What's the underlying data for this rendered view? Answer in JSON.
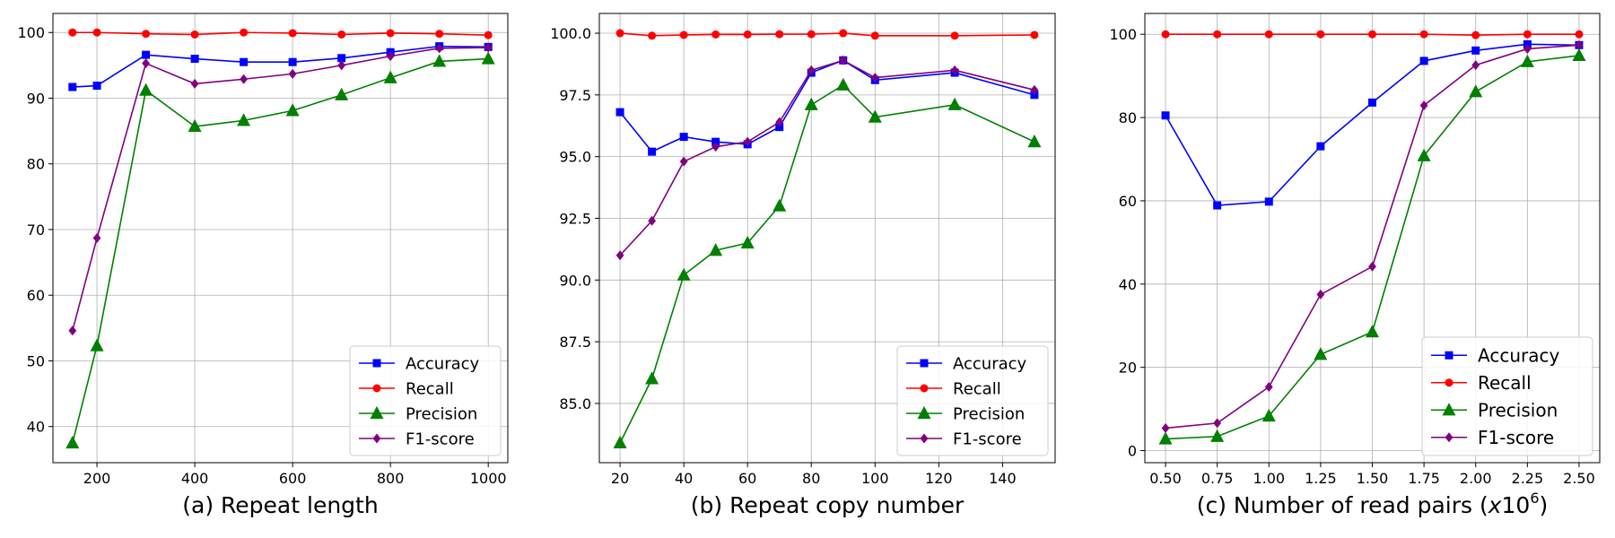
{
  "chart_data": [
    {
      "type": "line",
      "caption": "(a) Repeat length",
      "x": [
        150,
        200,
        300,
        400,
        500,
        600,
        700,
        800,
        900,
        1000
      ],
      "xlim": [
        110,
        1040
      ],
      "ylim": [
        34.5,
        102.9
      ],
      "xticks": [
        200,
        400,
        600,
        800,
        1000
      ],
      "yticks": [
        40,
        50,
        60,
        70,
        80,
        90,
        100
      ],
      "ytick_decimals": 0,
      "grid": true,
      "legend_position": "lower-right",
      "series": [
        {
          "name": "Accuracy",
          "color": "#0000ff",
          "marker": "square",
          "values": [
            91.7,
            91.9,
            96.6,
            96.0,
            95.5,
            95.5,
            96.1,
            97.0,
            97.9,
            97.8
          ]
        },
        {
          "name": "Recall",
          "color": "#ff0000",
          "marker": "circle",
          "values": [
            100.0,
            100.0,
            99.8,
            99.7,
            100.0,
            99.9,
            99.7,
            99.9,
            99.8,
            99.6
          ]
        },
        {
          "name": "Precision",
          "color": "#008000",
          "marker": "triangle",
          "values": [
            37.5,
            52.3,
            91.2,
            85.7,
            86.6,
            88.1,
            90.5,
            93.1,
            95.6,
            96.0
          ]
        },
        {
          "name": "F1-score",
          "color": "#800080",
          "marker": "diamond",
          "values": [
            54.6,
            68.7,
            95.3,
            92.2,
            92.9,
            93.7,
            95.0,
            96.4,
            97.6,
            97.7
          ]
        }
      ]
    },
    {
      "type": "line",
      "caption": "(b) Repeat copy number",
      "x": [
        20,
        30,
        40,
        50,
        60,
        70,
        80,
        90,
        100,
        125,
        150
      ],
      "xlim": [
        13.5,
        156.5
      ],
      "ylim": [
        82.6,
        100.8
      ],
      "xticks": [
        20,
        40,
        60,
        80,
        100,
        120,
        140
      ],
      "yticks": [
        85.0,
        87.5,
        90.0,
        92.5,
        95.0,
        97.5,
        100.0
      ],
      "ytick_decimals": 1,
      "grid": true,
      "legend_position": "lower-right",
      "series": [
        {
          "name": "Accuracy",
          "color": "#0000ff",
          "marker": "square",
          "values": [
            96.8,
            95.2,
            95.8,
            95.6,
            95.5,
            96.2,
            98.4,
            98.9,
            98.1,
            98.4,
            97.5
          ]
        },
        {
          "name": "Recall",
          "color": "#ff0000",
          "marker": "circle",
          "values": [
            100.0,
            99.9,
            99.93,
            99.95,
            99.95,
            99.96,
            99.96,
            100.0,
            99.9,
            99.9,
            99.93
          ]
        },
        {
          "name": "Precision",
          "color": "#008000",
          "marker": "triangle",
          "values": [
            83.4,
            86.0,
            90.2,
            91.2,
            91.5,
            93.0,
            97.1,
            97.9,
            96.6,
            97.1,
            95.6
          ]
        },
        {
          "name": "F1-score",
          "color": "#800080",
          "marker": "diamond",
          "values": [
            91.0,
            92.4,
            94.8,
            95.4,
            95.6,
            96.4,
            98.5,
            98.9,
            98.2,
            98.5,
            97.7
          ]
        }
      ]
    },
    {
      "type": "line",
      "caption": "(c) Number of read pairs (x10^6)",
      "caption_main": "(c) Number of read pairs (",
      "caption_var": "x",
      "caption_base": "10",
      "caption_exp": "6",
      "caption_close": ")",
      "x": [
        0.5,
        0.75,
        1.0,
        1.25,
        1.5,
        1.75,
        2.0,
        2.25,
        2.5
      ],
      "xlim": [
        0.4,
        2.6
      ],
      "ylim": [
        -2.9,
        105.0
      ],
      "xticks": [
        0.5,
        0.75,
        1.0,
        1.25,
        1.5,
        1.75,
        2.0,
        2.25,
        2.5
      ],
      "xtick_decimals": 2,
      "yticks": [
        0,
        20,
        40,
        60,
        80,
        100
      ],
      "ytick_decimals": 0,
      "grid": true,
      "legend_position": "lower-right",
      "series": [
        {
          "name": "Accuracy",
          "color": "#0000ff",
          "marker": "square",
          "values": [
            80.5,
            58.9,
            59.8,
            73.1,
            83.6,
            93.6,
            96.1,
            97.6,
            97.4
          ]
        },
        {
          "name": "Recall",
          "color": "#ff0000",
          "marker": "circle",
          "values": [
            100.0,
            100.0,
            100.0,
            100.0,
            100.0,
            100.0,
            99.8,
            100.0,
            100.0
          ]
        },
        {
          "name": "Precision",
          "color": "#008000",
          "marker": "triangle",
          "values": [
            2.8,
            3.4,
            8.3,
            23.1,
            28.5,
            70.8,
            86.2,
            93.4,
            94.9
          ]
        },
        {
          "name": "F1-score",
          "color": "#800080",
          "marker": "diamond",
          "values": [
            5.4,
            6.6,
            15.3,
            37.5,
            44.2,
            82.9,
            92.6,
            96.5,
            97.4
          ]
        }
      ]
    }
  ]
}
